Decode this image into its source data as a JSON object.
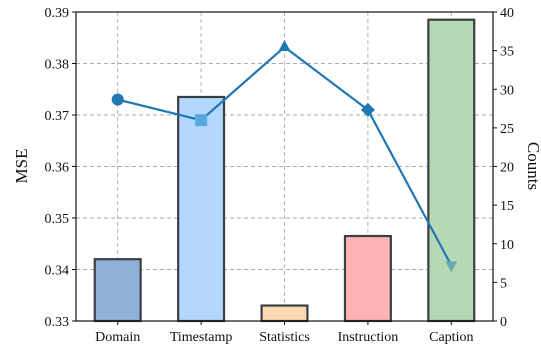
{
  "chart_data": {
    "type": "bar",
    "categories": [
      "Domain",
      "Timestamp",
      "Statistics",
      "Instruction",
      "Caption"
    ],
    "bar_series": {
      "values": [
        8,
        29,
        2,
        11,
        39
      ],
      "colors": [
        "#8fb1d6",
        "#b3d7ff",
        "#fbd8b0",
        "#ffb3b3",
        "#b5d9b5"
      ],
      "edge_color": "#3a3f44"
    },
    "line_series": {
      "values": [
        0.373,
        0.369,
        0.3832,
        0.371,
        0.3408
      ],
      "color": "#1f77b4",
      "markers": [
        "circle",
        "square",
        "triangle-up",
        "diamond",
        "triangle-down"
      ],
      "marker_colors": [
        "#1f77b4",
        "#5aa8e0",
        "#1f77b4",
        "#1f77b4",
        "#6aaab0"
      ]
    },
    "ylabel": "MSE",
    "ylim": [
      0.33,
      0.39
    ],
    "yticks": [
      "0.33",
      "0.34",
      "0.35",
      "0.36",
      "0.37",
      "0.38",
      "0.39"
    ],
    "y2label": "Counts",
    "y2lim": [
      0,
      40
    ],
    "y2ticks": [
      "0",
      "5",
      "10",
      "15",
      "20",
      "25",
      "30",
      "35",
      "40"
    ],
    "grid": true
  }
}
